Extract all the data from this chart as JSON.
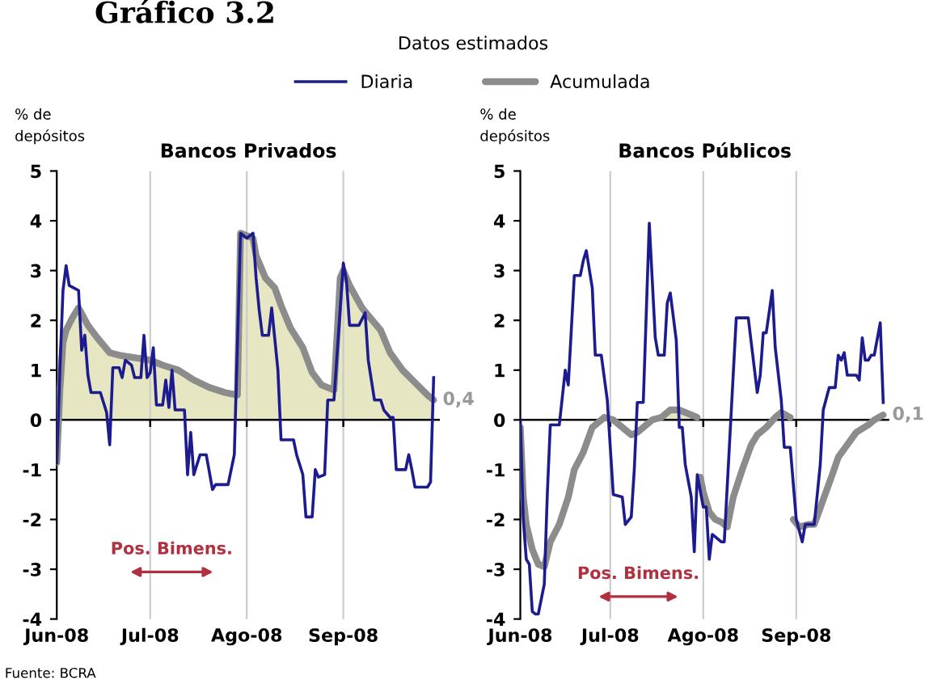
{
  "chart_data": [
    {
      "type": "line",
      "title": "Bancos Privados",
      "subtitle": "Datos estimados",
      "ylabel": "% de\ndepósitos",
      "legend": "top",
      "grid": "x",
      "xlim": [
        "2008-06-01",
        "2008-10-02"
      ],
      "ylim": [
        -4,
        5
      ],
      "yticks": [
        -4,
        -3,
        -2,
        -1,
        0,
        1,
        2,
        3,
        4,
        5
      ],
      "xticks": [
        {
          "value": "2008-06-01",
          "label": "Jun-08"
        },
        {
          "value": "2008-07-01",
          "label": "Jul-08"
        },
        {
          "value": "2008-08-01",
          "label": "Ago-08"
        },
        {
          "value": "2008-09-01",
          "label": "Sep-08"
        }
      ],
      "annotations": [
        "Gráfico 3.2",
        "Pos. Bimens.",
        {
          "text": "0,4",
          "x": "2008-09-30",
          "y": 0.4
        },
        "Fuente: BCRA"
      ],
      "series": [
        {
          "name": "Diaria",
          "type": "line",
          "color": "#1c1c8f",
          "x": [
            "2008-06-01",
            "2008-06-02",
            "2008-06-03",
            "2008-06-04",
            "2008-06-05",
            "2008-06-08",
            "2008-06-09",
            "2008-06-10",
            "2008-06-11",
            "2008-06-12",
            "2008-06-15",
            "2008-06-17",
            "2008-06-18",
            "2008-06-19",
            "2008-06-21",
            "2008-06-22",
            "2008-06-23",
            "2008-06-25",
            "2008-06-26",
            "2008-06-28",
            "2008-06-29",
            "2008-06-30",
            "2008-07-01",
            "2008-07-02",
            "2008-07-03",
            "2008-07-05",
            "2008-07-06",
            "2008-07-07",
            "2008-07-08",
            "2008-07-09",
            "2008-07-12",
            "2008-07-13",
            "2008-07-14",
            "2008-07-15",
            "2008-07-17",
            "2008-07-19",
            "2008-07-21",
            "2008-07-22",
            "2008-07-26",
            "2008-07-27",
            "2008-07-28",
            "2008-07-30",
            "2008-08-01",
            "2008-08-03",
            "2008-08-04",
            "2008-08-05",
            "2008-08-06",
            "2008-08-08",
            "2008-08-09",
            "2008-08-11",
            "2008-08-12",
            "2008-08-16",
            "2008-08-17",
            "2008-08-19",
            "2008-08-20",
            "2008-08-22",
            "2008-08-23",
            "2008-08-24",
            "2008-08-26",
            "2008-08-27",
            "2008-08-29",
            "2008-09-01",
            "2008-09-02",
            "2008-09-03",
            "2008-09-06",
            "2008-09-08",
            "2008-09-09",
            "2008-09-11",
            "2008-09-13",
            "2008-09-14",
            "2008-09-16",
            "2008-09-17",
            "2008-09-18",
            "2008-09-21",
            "2008-09-22",
            "2008-09-23",
            "2008-09-24",
            "2008-09-28",
            "2008-09-29",
            "2008-09-30"
          ],
          "values": [
            -0.86,
            1.0,
            2.6,
            3.1,
            2.7,
            2.6,
            1.4,
            1.7,
            0.9,
            0.55,
            0.55,
            0.15,
            -0.5,
            1.05,
            1.05,
            0.85,
            1.2,
            1.1,
            0.85,
            0.85,
            1.7,
            0.85,
            0.95,
            1.45,
            0.3,
            0.3,
            0.8,
            0.25,
            1.0,
            0.2,
            0.2,
            -1.1,
            -0.25,
            -1.1,
            -0.7,
            -0.7,
            -1.4,
            -1.3,
            -1.3,
            -1.0,
            -0.7,
            3.75,
            3.65,
            3.75,
            2.85,
            2.2,
            1.7,
            1.7,
            2.25,
            1.0,
            -0.4,
            -0.4,
            -0.7,
            -1.1,
            -1.95,
            -1.95,
            -1.0,
            -1.15,
            -1.1,
            0.4,
            0.4,
            3.15,
            2.8,
            1.9,
            1.9,
            2.15,
            1.2,
            0.4,
            0.4,
            0.2,
            0.05,
            0.05,
            -1.0,
            -1.0,
            -0.7,
            -1.0,
            -1.35,
            -1.35,
            -1.25,
            0.85
          ]
        },
        {
          "type": "area",
          "color": "#e6e6c3",
          "x": [
            "2008-06-01",
            "2008-06-02",
            "2008-06-03",
            "2008-06-04",
            "2008-06-06",
            "2008-06-08",
            "2008-06-11",
            "2008-06-14",
            "2008-06-18",
            "2008-06-21",
            "2008-06-26",
            "2008-07-01",
            "2008-07-05",
            "2008-07-10",
            "2008-07-15",
            "2008-07-20",
            "2008-07-25",
            "2008-07-29",
            "2008-07-29T12:00",
            "2008-07-30",
            "2008-08-03",
            "2008-08-04",
            "2008-08-07",
            "2008-08-10",
            "2008-08-12",
            "2008-08-15",
            "2008-08-19",
            "2008-08-22",
            "2008-08-25",
            "2008-08-29",
            "2008-08-30",
            "2008-08-31",
            "2008-09-01",
            "2008-09-03",
            "2008-09-07",
            "2008-09-09",
            "2008-09-13",
            "2008-09-16",
            "2008-09-20",
            "2008-09-24",
            "2008-09-28",
            "2008-09-30"
          ],
          "values": [
            0,
            0.6,
            1.55,
            1.8,
            2.05,
            2.25,
            1.9,
            1.65,
            1.35,
            1.3,
            1.25,
            1.2,
            1.1,
            1.0,
            0.8,
            0.65,
            0.55,
            0.5,
            0.5,
            3.75,
            3.65,
            3.3,
            2.85,
            2.65,
            2.3,
            1.85,
            1.45,
            0.95,
            0.7,
            0.6,
            0.6,
            2.85,
            3.0,
            2.7,
            2.25,
            2.1,
            1.8,
            1.35,
            1.0,
            0.75,
            0.5,
            0.4
          ]
        },
        {
          "name": "Acumulada",
          "type": "line",
          "color": "#8c8c8c",
          "x": [
            "2008-06-01",
            "2008-06-02",
            "2008-06-03",
            "2008-06-04",
            "2008-06-06",
            "2008-06-08",
            "2008-06-11",
            "2008-06-14",
            "2008-06-18",
            "2008-06-21",
            "2008-06-26",
            "2008-07-01",
            "2008-07-05",
            "2008-07-10",
            "2008-07-15",
            "2008-07-20",
            "2008-07-25",
            "2008-07-29",
            "2008-07-30",
            "2008-08-03",
            "2008-08-04",
            "2008-08-07",
            "2008-08-10",
            "2008-08-12",
            "2008-08-15",
            "2008-08-19",
            "2008-08-22",
            "2008-08-25",
            "2008-08-29",
            "2008-08-31",
            "2008-09-01",
            "2008-09-03",
            "2008-09-07",
            "2008-09-09",
            "2008-09-13",
            "2008-09-16",
            "2008-09-20",
            "2008-09-24",
            "2008-09-28",
            "2008-09-30"
          ],
          "values": [
            -0.86,
            0.6,
            1.55,
            1.8,
            2.05,
            2.25,
            1.9,
            1.65,
            1.35,
            1.3,
            1.25,
            1.2,
            1.1,
            1.0,
            0.8,
            0.65,
            0.55,
            0.5,
            3.75,
            3.65,
            3.3,
            2.85,
            2.65,
            2.3,
            1.85,
            1.45,
            0.95,
            0.7,
            0.6,
            2.85,
            3.0,
            2.7,
            2.25,
            2.1,
            1.8,
            1.35,
            1.0,
            0.75,
            0.5,
            0.4
          ]
        }
      ]
    },
    {
      "type": "line",
      "title": "Bancos Públicos",
      "ylabel": "% de\ndepósitos",
      "grid": "x",
      "xlim": [
        "2008-06-01",
        "2008-10-02"
      ],
      "ylim": [
        -4,
        5
      ],
      "yticks": [
        -4,
        -3,
        -2,
        -1,
        0,
        1,
        2,
        3,
        4,
        5
      ],
      "xticks": [
        {
          "value": "2008-06-01",
          "label": "Jun-08"
        },
        {
          "value": "2008-07-01",
          "label": "Jul-08"
        },
        {
          "value": "2008-08-01",
          "label": "Ago-08"
        },
        {
          "value": "2008-09-01",
          "label": "Sep-08"
        }
      ],
      "annotations": [
        "Pos. Bimens.",
        {
          "text": "0,1",
          "x": "2008-09-30",
          "y": 0.1
        }
      ],
      "series": [
        {
          "type": "line",
          "color": "#1c1c8f",
          "x": [
            "2008-06-01",
            "2008-06-02",
            "2008-06-03",
            "2008-06-04",
            "2008-06-05",
            "2008-06-06",
            "2008-06-07",
            "2008-06-09",
            "2008-06-10",
            "2008-06-11",
            "2008-06-14",
            "2008-06-16",
            "2008-06-17",
            "2008-06-19",
            "2008-06-21",
            "2008-06-22",
            "2008-06-23",
            "2008-06-25",
            "2008-06-26",
            "2008-06-28",
            "2008-06-30",
            "2008-07-02",
            "2008-07-05",
            "2008-07-06",
            "2008-07-08",
            "2008-07-09",
            "2008-07-10",
            "2008-07-12",
            "2008-07-14",
            "2008-07-16",
            "2008-07-17",
            "2008-07-19",
            "2008-07-20",
            "2008-07-21",
            "2008-07-23",
            "2008-07-24",
            "2008-07-25",
            "2008-07-26",
            "2008-07-28",
            "2008-07-29",
            "2008-07-30",
            "2008-08-01",
            "2008-08-02",
            "2008-08-03",
            "2008-08-04",
            "2008-08-07",
            "2008-08-08",
            "2008-08-12",
            "2008-08-14",
            "2008-08-16",
            "2008-08-19",
            "2008-08-20",
            "2008-08-21",
            "2008-08-22",
            "2008-08-24",
            "2008-08-25",
            "2008-08-27",
            "2008-08-28",
            "2008-08-30",
            "2008-09-01",
            "2008-09-03",
            "2008-09-04",
            "2008-09-07",
            "2008-09-09",
            "2008-09-10",
            "2008-09-12",
            "2008-09-14",
            "2008-09-15",
            "2008-09-16",
            "2008-09-17",
            "2008-09-18",
            "2008-09-21",
            "2008-09-22",
            "2008-09-23",
            "2008-09-24",
            "2008-09-25",
            "2008-09-26",
            "2008-09-27",
            "2008-09-29",
            "2008-09-30"
          ],
          "values": [
            0.0,
            -2.0,
            -2.8,
            -2.9,
            -3.85,
            -3.9,
            -3.9,
            -3.3,
            -1.5,
            -0.1,
            -0.1,
            1.0,
            0.7,
            2.9,
            2.9,
            3.2,
            3.4,
            2.65,
            1.3,
            1.3,
            0.4,
            -1.5,
            -1.55,
            -2.1,
            -1.95,
            -1.0,
            0.35,
            0.35,
            3.95,
            1.65,
            1.3,
            1.3,
            2.35,
            2.55,
            1.6,
            -0.15,
            -0.15,
            -0.9,
            -1.55,
            -2.65,
            -1.1,
            -1.75,
            -1.75,
            -2.8,
            -2.3,
            -2.45,
            -2.45,
            2.05,
            2.05,
            2.05,
            0.55,
            0.9,
            1.75,
            1.75,
            2.6,
            1.45,
            0.4,
            -0.55,
            -0.55,
            -2.0,
            -2.45,
            -2.1,
            -2.1,
            -0.9,
            0.2,
            0.65,
            0.65,
            1.3,
            1.2,
            1.35,
            0.9,
            0.9,
            0.8,
            1.65,
            1.2,
            1.2,
            1.3,
            1.3,
            1.95,
            0.35
          ]
        },
        {
          "type": "area",
          "color": "#e6e6c3",
          "x": [
            "2008-07-15",
            "2008-07-18",
            "2008-07-21",
            "2008-07-24",
            "2008-07-28",
            "2008-07-30",
            "2008-07-30T12:00",
            "2008-08-25",
            "2008-08-27",
            "2008-08-30"
          ],
          "values": [
            0.0,
            0.05,
            0.2,
            0.2,
            0.1,
            0.05,
            null,
            0.05,
            0.15,
            0.05
          ]
        },
        {
          "type": "line",
          "color": "#8c8c8c",
          "x": [
            "2008-06-01",
            "2008-06-02",
            "2008-06-03",
            "2008-06-05",
            "2008-06-07",
            "2008-06-09",
            "2008-06-11",
            "2008-06-14",
            "2008-06-17",
            "2008-06-19",
            "2008-06-22",
            "2008-06-25",
            "2008-06-27",
            "2008-06-29",
            "2008-07-02",
            "2008-07-04",
            "2008-07-08",
            "2008-07-10",
            "2008-07-13",
            "2008-07-15",
            "2008-07-18",
            "2008-07-21",
            "2008-07-24",
            "2008-07-28",
            "2008-07-30",
            "2008-07-30T12:00",
            "2008-07-31",
            "2008-08-01",
            "2008-08-03",
            "2008-08-05",
            "2008-08-07",
            "2008-08-09",
            "2008-08-11",
            "2008-08-14",
            "2008-08-17",
            "2008-08-19",
            "2008-08-22",
            "2008-08-25",
            "2008-08-27",
            "2008-08-30",
            "2008-08-30T12:00",
            "2008-08-31",
            "2008-09-02",
            "2008-09-05",
            "2008-09-07",
            "2008-09-10",
            "2008-09-13",
            "2008-09-15",
            "2008-09-18",
            "2008-09-21",
            "2008-09-25",
            "2008-09-27",
            "2008-09-30"
          ],
          "values": [
            -0.15,
            -1.55,
            -2.1,
            -2.6,
            -2.9,
            -2.95,
            -2.45,
            -2.1,
            -1.55,
            -1.0,
            -0.65,
            -0.15,
            -0.05,
            0.05,
            0.0,
            -0.1,
            -0.3,
            -0.25,
            -0.1,
            0.0,
            0.05,
            0.2,
            0.2,
            0.1,
            0.05,
            null,
            -1.15,
            -1.45,
            -1.85,
            -2.0,
            -2.05,
            -2.15,
            -1.55,
            -1.0,
            -0.5,
            -0.3,
            -0.15,
            0.05,
            0.15,
            0.05,
            null,
            -2.0,
            -2.15,
            -2.1,
            -2.1,
            -1.6,
            -1.1,
            -0.75,
            -0.5,
            -0.25,
            -0.1,
            0.0,
            0.1
          ]
        }
      ]
    }
  ]
}
